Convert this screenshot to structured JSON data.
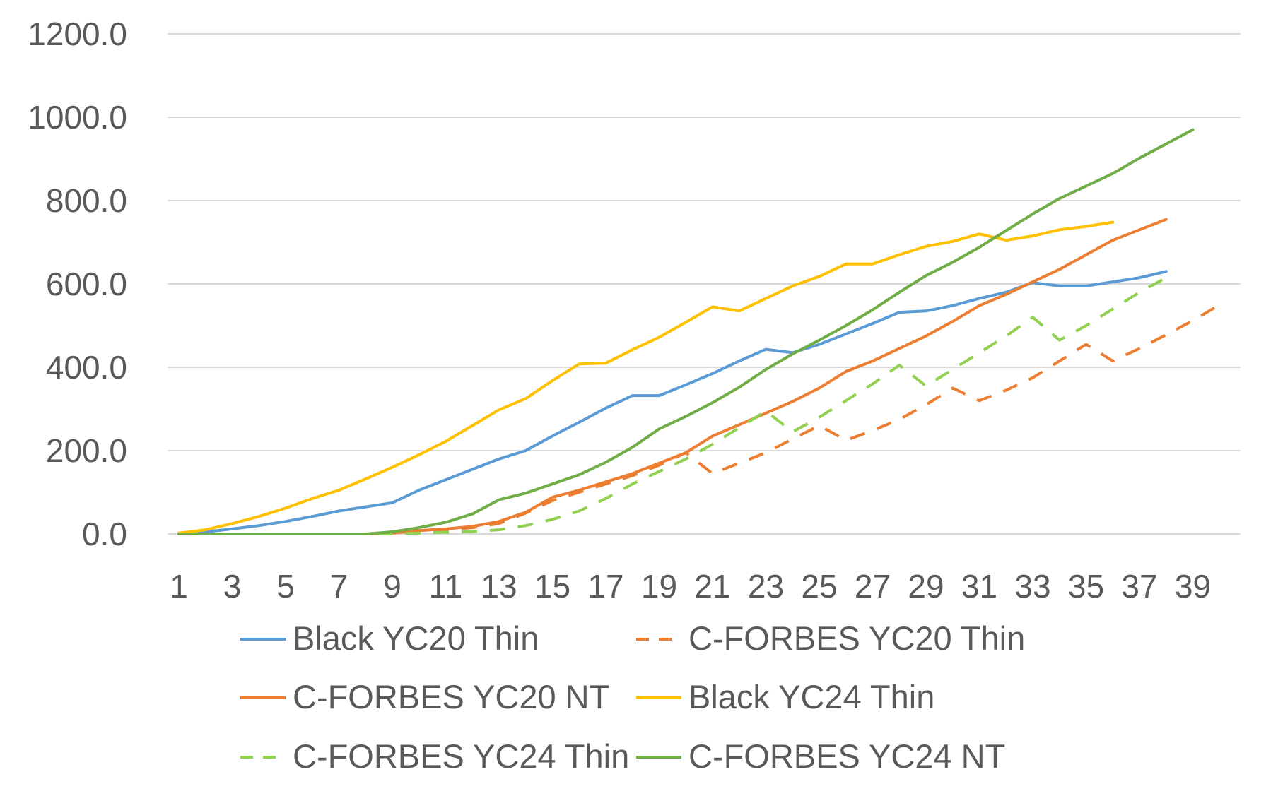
{
  "chart_data": {
    "type": "line",
    "title": "",
    "xlabel": "",
    "ylabel": "",
    "ylim": [
      0,
      1200
    ],
    "yticks": [
      "0.0",
      "200.0",
      "400.0",
      "600.0",
      "800.0",
      "1000.0",
      "1200.0"
    ],
    "xtick_labels": [
      "1",
      "3",
      "5",
      "7",
      "9",
      "11",
      "13",
      "15",
      "17",
      "19",
      "21",
      "23",
      "25",
      "27",
      "29",
      "31",
      "33",
      "35",
      "37",
      "39"
    ],
    "grid": "horizontal",
    "legend_placement": "bottom",
    "x": [
      1,
      2,
      3,
      4,
      5,
      6,
      7,
      8,
      9,
      10,
      11,
      12,
      13,
      14,
      15,
      16,
      17,
      18,
      19,
      20,
      21,
      22,
      23,
      24,
      25,
      26,
      27,
      28,
      29,
      30,
      31,
      32,
      33,
      34,
      35,
      36,
      37,
      38,
      39,
      40
    ],
    "series": [
      {
        "name": "Black YC20 Thin",
        "color": "#5b9bd5",
        "dash": "solid",
        "values": [
          2,
          5,
          12,
          20,
          30,
          42,
          55,
          65,
          75,
          105,
          130,
          155,
          180,
          200,
          235,
          268,
          302,
          332,
          332,
          358,
          385,
          415,
          443,
          435,
          455,
          480,
          505,
          532,
          535,
          548,
          565,
          580,
          603,
          595,
          595,
          605,
          615,
          630,
          null,
          null
        ]
      },
      {
        "name": "C-FORBES YC20 Thin",
        "color": "#ed7d31",
        "dash": "dashed",
        "values": [
          0,
          0,
          0,
          0,
          0,
          0,
          0,
          0,
          2,
          6,
          10,
          15,
          25,
          50,
          80,
          100,
          120,
          140,
          165,
          195,
          145,
          170,
          195,
          228,
          260,
          225,
          248,
          275,
          310,
          350,
          320,
          345,
          375,
          415,
          455,
          415,
          445,
          478,
          512,
          550
        ]
      },
      {
        "name": "C-FORBES YC20 NT",
        "color": "#ed7d31",
        "dash": "solid",
        "values": [
          0,
          0,
          0,
          0,
          0,
          0,
          0,
          0,
          2,
          8,
          12,
          18,
          30,
          52,
          88,
          105,
          125,
          145,
          170,
          195,
          235,
          262,
          290,
          318,
          350,
          390,
          415,
          445,
          475,
          510,
          548,
          575,
          605,
          635,
          670,
          705,
          730,
          755,
          null,
          null
        ]
      },
      {
        "name": "Black YC24 Thin",
        "color": "#ffc000",
        "dash": "solid",
        "values": [
          2,
          10,
          25,
          42,
          62,
          85,
          105,
          132,
          160,
          190,
          222,
          260,
          298,
          325,
          368,
          408,
          410,
          442,
          472,
          508,
          545,
          535,
          565,
          595,
          618,
          648,
          648,
          670,
          690,
          702,
          720,
          705,
          715,
          730,
          738,
          748,
          null,
          null,
          null,
          null
        ]
      },
      {
        "name": "C-FORBES YC24 Thin",
        "color": "#92d050",
        "dash": "dashed",
        "values": [
          0,
          0,
          0,
          0,
          0,
          0,
          0,
          0,
          0,
          2,
          4,
          6,
          10,
          20,
          35,
          55,
          85,
          120,
          150,
          180,
          215,
          255,
          295,
          245,
          280,
          320,
          360,
          405,
          355,
          395,
          435,
          475,
          520,
          465,
          500,
          540,
          580,
          615,
          null,
          null
        ]
      },
      {
        "name": "C-FORBES YC24 NT",
        "color": "#70ad47",
        "dash": "solid",
        "values": [
          0,
          0,
          0,
          0,
          0,
          0,
          0,
          0,
          5,
          15,
          28,
          48,
          82,
          98,
          120,
          142,
          172,
          208,
          252,
          282,
          315,
          352,
          395,
          432,
          465,
          500,
          538,
          580,
          620,
          652,
          688,
          728,
          768,
          805,
          835,
          865,
          902,
          936,
          970,
          null
        ]
      }
    ]
  }
}
